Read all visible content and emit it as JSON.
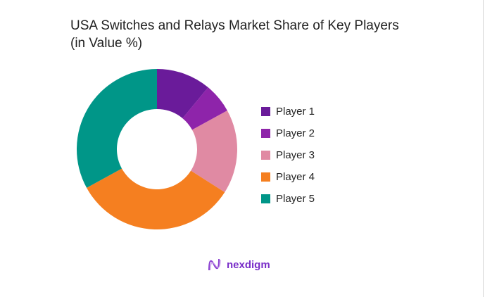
{
  "chart_data": {
    "type": "pie",
    "donut": true,
    "title": "USA Switches and Relays Market Share of Key Players (in Value %)",
    "title_lines": [
      "USA Switches and Relays Market Share of Key Players",
      "(in Value %)"
    ],
    "categories": [
      "Player 1",
      "Player 2",
      "Player 3",
      "Player 4",
      "Player 5"
    ],
    "values": [
      11,
      6,
      17,
      33,
      33
    ],
    "colors": [
      "#6a1b9a",
      "#8e24aa",
      "#e08aa3",
      "#f57f20",
      "#009688"
    ],
    "legend_position": "right"
  },
  "branding": {
    "logo_text": "nexdigm"
  }
}
